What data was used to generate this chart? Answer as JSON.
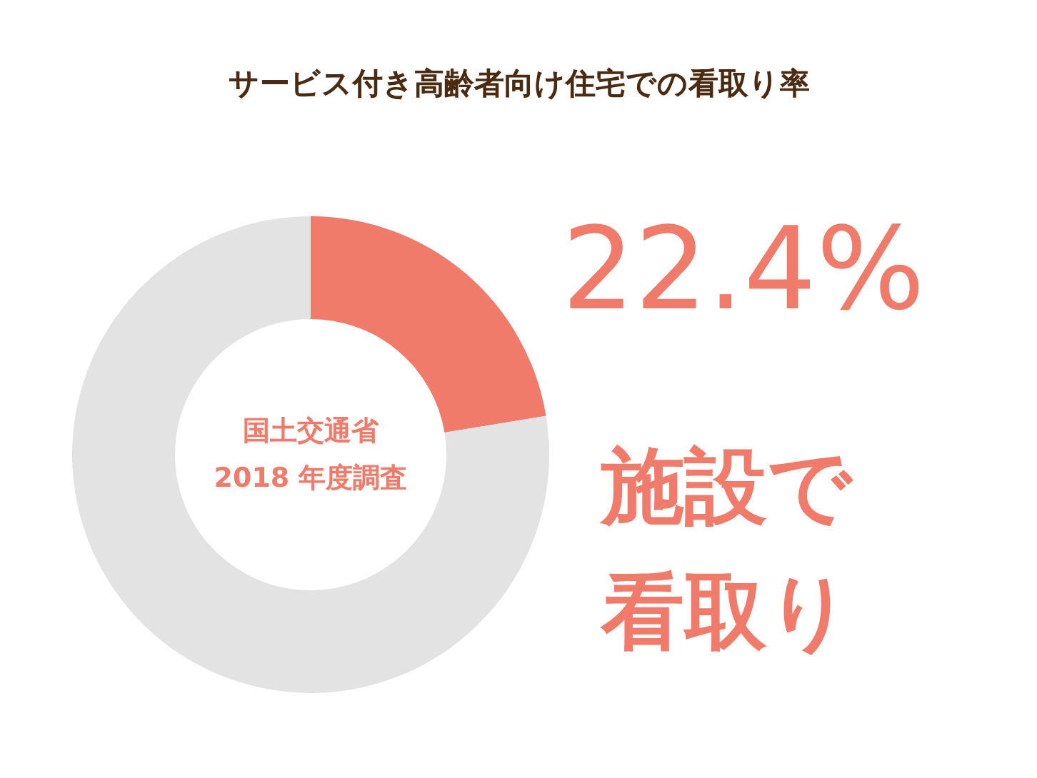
{
  "chart_data": {
    "type": "donut",
    "title": "サービス付き高齢者向け住宅での看取り率",
    "categories": [
      null,
      null
    ],
    "values": [
      22.4,
      77.6
    ],
    "colors": [
      "#f07b6b",
      "#e3e3e3"
    ],
    "value_labels": [
      "22.4%",
      null
    ],
    "annotations": [
      "国土交通省\n2018 年度調査",
      "施設で",
      "看取り"
    ],
    "legend": false
  }
}
